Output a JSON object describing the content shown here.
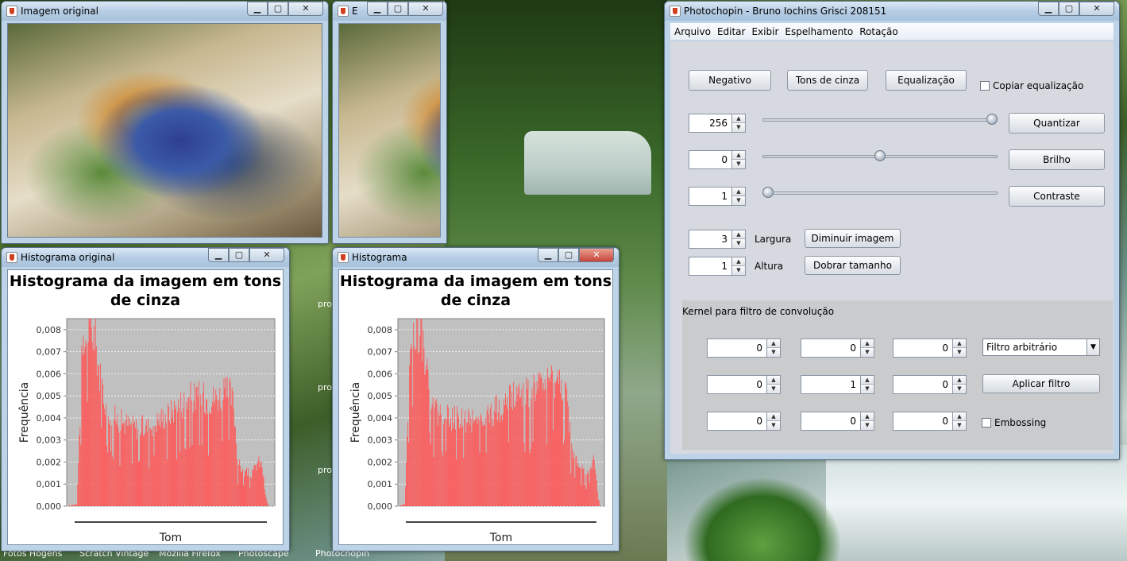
{
  "desktop": {
    "labels": [
      "pro",
      "pro",
      "pro"
    ],
    "taskbar": [
      "Fotos Hogens",
      "Scratch Vintage",
      "Mozilla Firefox",
      "Photoscape",
      "Photochopin"
    ]
  },
  "window_original": {
    "title": "Imagem original"
  },
  "window_edited": {
    "title": "E"
  },
  "window_hist_original": {
    "title": "Histograma original"
  },
  "window_hist_edited": {
    "title": "Histograma"
  },
  "title_buttons": {
    "minimize": "▁",
    "maximize": "▢",
    "close": "✕"
  },
  "histograms": [
    {
      "chart_data": {
        "type": "bar",
        "title": "Histograma da imagem em tons de cinza",
        "xlabel": "Tom",
        "ylabel": "Frequência",
        "ylim": [
          0,
          0.0085
        ],
        "yticks": [
          "0,000",
          "0,001",
          "0,002",
          "0,003",
          "0,004",
          "0,005",
          "0,006",
          "0,007",
          "0,008"
        ],
        "bar_color": "#ff5555",
        "grid": true,
        "profile": [
          [
            0,
            0
          ],
          [
            12,
            0.0001
          ],
          [
            14,
            0.002
          ],
          [
            18,
            0.0065
          ],
          [
            24,
            0.0083
          ],
          [
            28,
            0.0085
          ],
          [
            34,
            0.008
          ],
          [
            40,
            0.0062
          ],
          [
            48,
            0.0048
          ],
          [
            56,
            0.0042
          ],
          [
            70,
            0.0039
          ],
          [
            85,
            0.0037
          ],
          [
            100,
            0.0037
          ],
          [
            115,
            0.0041
          ],
          [
            128,
            0.0044
          ],
          [
            140,
            0.0048
          ],
          [
            152,
            0.0051
          ],
          [
            165,
            0.0051
          ],
          [
            178,
            0.005
          ],
          [
            190,
            0.0052
          ],
          [
            200,
            0.0053
          ],
          [
            205,
            0.0048
          ],
          [
            210,
            0.002
          ],
          [
            218,
            0.0016
          ],
          [
            228,
            0.0015
          ],
          [
            235,
            0.0021
          ],
          [
            240,
            0.0019
          ],
          [
            244,
            0.0005
          ],
          [
            248,
            0
          ],
          [
            255,
            0
          ]
        ]
      }
    },
    {
      "chart_data": {
        "type": "bar",
        "title": "Histograma da imagem em tons de cinza",
        "xlabel": "Tom",
        "ylabel": "Frequência",
        "ylim": [
          0,
          0.0085
        ],
        "yticks": [
          "0,000",
          "0,001",
          "0,002",
          "0,003",
          "0,004",
          "0,005",
          "0,006",
          "0,007",
          "0,008"
        ],
        "bar_color": "#ff5555",
        "grid": true,
        "profile": [
          [
            0,
            0
          ],
          [
            8,
            0.0001
          ],
          [
            10,
            0.002
          ],
          [
            14,
            0.007
          ],
          [
            20,
            0.0082
          ],
          [
            24,
            0.0085
          ],
          [
            30,
            0.0078
          ],
          [
            36,
            0.006
          ],
          [
            44,
            0.0047
          ],
          [
            54,
            0.0042
          ],
          [
            70,
            0.0041
          ],
          [
            90,
            0.004
          ],
          [
            110,
            0.0042
          ],
          [
            125,
            0.0046
          ],
          [
            140,
            0.005
          ],
          [
            155,
            0.0052
          ],
          [
            170,
            0.0054
          ],
          [
            185,
            0.0056
          ],
          [
            195,
            0.0058
          ],
          [
            205,
            0.0056
          ],
          [
            210,
            0.0048
          ],
          [
            216,
            0.0025
          ],
          [
            225,
            0.0018
          ],
          [
            235,
            0.0016
          ],
          [
            242,
            0.0022
          ],
          [
            247,
            0.0008
          ],
          [
            250,
            0
          ],
          [
            255,
            0
          ]
        ]
      }
    }
  ],
  "main": {
    "title": "Photochopin - Bruno Iochins Grisci 208151",
    "menu": [
      "Arquivo",
      "Editar",
      "Exibir",
      "Espelhamento",
      "Rotação"
    ],
    "buttons": {
      "negativo": "Negativo",
      "tons": "Tons de cinza",
      "equalizacao": "Equalização",
      "quantizar": "Quantizar",
      "brilho": "Brilho",
      "contraste": "Contraste",
      "diminuir": "Diminuir imagem",
      "dobrar": "Dobrar tamanho",
      "aplicar": "Aplicar filtro"
    },
    "copiar_label": "Copiar equalização",
    "quant_value": "256",
    "quant_slider": 1.0,
    "brilho_value": "0",
    "brilho_slider": 0.5,
    "contraste_value": "1",
    "contraste_slider": 0.0,
    "largura_value": "3",
    "largura_label": "Largura",
    "altura_value": "1",
    "altura_label": "Altura",
    "kernel_title": "Kernel para filtro de convolução",
    "kernel": [
      [
        "0",
        "0",
        "0"
      ],
      [
        "0",
        "1",
        "0"
      ],
      [
        "0",
        "0",
        "0"
      ]
    ],
    "filter_select": "Filtro arbitrário",
    "embossing_label": "Embossing"
  },
  "colors": {
    "bar": "#ff5555",
    "plot_bg": "#c0c0c0",
    "panel": "#d6d9df",
    "kernel_panel": "#c9cbcd"
  }
}
